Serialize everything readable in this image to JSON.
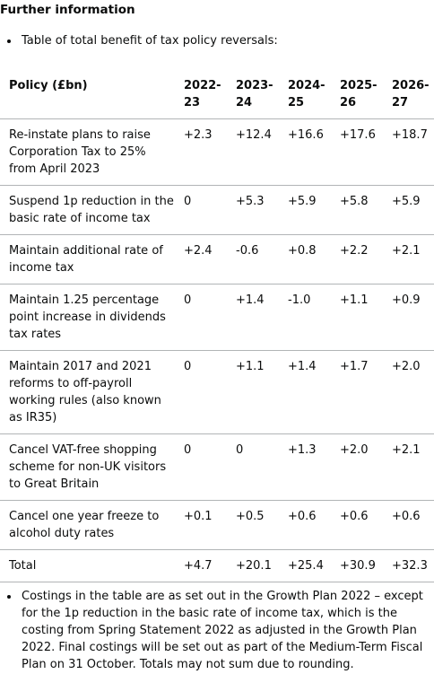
{
  "header": {
    "title": "Further information"
  },
  "intro_bullet": "Table of total benefit of tax policy reversals:",
  "table": {
    "columns": [
      "Policy (£bn)",
      "2022-23",
      "2023-24",
      "2024-25",
      "2025-26",
      "2026-27"
    ],
    "rows": [
      [
        "Re-instate plans to raise Corporation Tax to 25% from April 2023",
        "+2.3",
        "+12.4",
        "+16.6",
        "+17.6",
        "+18.7"
      ],
      [
        "Suspend 1p reduction in the basic rate of income tax",
        "0",
        "+5.3",
        "+5.9",
        "+5.8",
        "+5.9"
      ],
      [
        "Maintain additional rate of income tax",
        "+2.4",
        "-0.6",
        "+0.8",
        "+2.2",
        "+2.1"
      ],
      [
        "Maintain 1.25 percentage point increase in dividends tax rates",
        "0",
        "+1.4",
        "-1.0",
        "+1.1",
        "+0.9"
      ],
      [
        "Maintain 2017 and 2021 reforms to off-payroll working rules (also known as IR35)",
        "0",
        "+1.1",
        "+1.4",
        "+1.7",
        "+2.0"
      ],
      [
        "Cancel VAT-free shopping scheme for non-UK visitors to Great Britain",
        "0",
        "0",
        "+1.3",
        "+2.0",
        "+2.1"
      ],
      [
        "Cancel one year freeze to alcohol duty rates",
        "+0.1",
        "+0.5",
        "+0.6",
        "+0.6",
        "+0.6"
      ],
      [
        "Total",
        "+4.7",
        "+20.1",
        "+25.4",
        "+30.9",
        "+32.3"
      ]
    ]
  },
  "note_bullet": "Costings in the table are as set out in the Growth Plan 2022 – except for the 1p reduction in the basic rate of income tax, which is the costing from Spring Statement 2022 as adjusted in the Growth Plan 2022. Final costings will be set out as part of the Medium-Term Fiscal Plan on 31 October. Totals may not sum due to rounding."
}
